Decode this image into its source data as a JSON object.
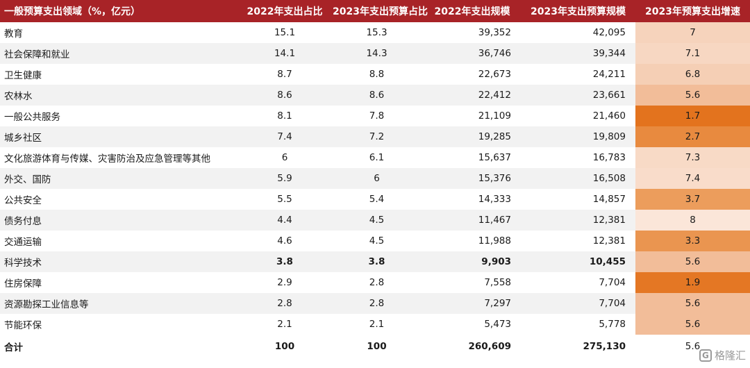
{
  "header": {
    "category": "一般预算支出领域（%，亿元）",
    "share_2022": "2022年支出占比",
    "share_2023": "2023年支出预算占比",
    "scale_2022": "2022年支出规模",
    "scale_2023": "2023年支出预算规模",
    "growth_2023": "2023年预算支出增速"
  },
  "rows": [
    {
      "label": "教育",
      "share_2022": "15.1",
      "share_2023": "15.3",
      "scale_2022": "39,352",
      "scale_2023": "42,095",
      "growth": "7",
      "growth_color": "#f6d3bc"
    },
    {
      "label": "社会保障和就业",
      "share_2022": "14.1",
      "share_2023": "14.3",
      "scale_2022": "36,746",
      "scale_2023": "39,344",
      "growth": "7.1",
      "growth_color": "#f7d7c2"
    },
    {
      "label": "卫生健康",
      "share_2022": "8.7",
      "share_2023": "8.8",
      "scale_2022": "22,673",
      "scale_2023": "24,211",
      "growth": "6.8",
      "growth_color": "#f5cfb5"
    },
    {
      "label": "农林水",
      "share_2022": "8.6",
      "share_2023": "8.6",
      "scale_2022": "22,412",
      "scale_2023": "23,661",
      "growth": "5.6",
      "growth_color": "#f2bd99"
    },
    {
      "label": "一般公共服务",
      "share_2022": "8.1",
      "share_2023": "7.8",
      "scale_2022": "21,109",
      "scale_2023": "21,460",
      "growth": "1.7",
      "growth_color": "#e3731e"
    },
    {
      "label": "城乡社区",
      "share_2022": "7.4",
      "share_2023": "7.2",
      "scale_2022": "19,285",
      "scale_2023": "19,809",
      "growth": "2.7",
      "growth_color": "#e88a3f"
    },
    {
      "label": "文化旅游体育与传媒、灾害防治及应急管理等其他",
      "share_2022": "6",
      "share_2023": "6.1",
      "scale_2022": "15,637",
      "scale_2023": "16,783",
      "growth": "7.3",
      "growth_color": "#f8dac6"
    },
    {
      "label": "外交、国防",
      "share_2022": "5.9",
      "share_2023": "6",
      "scale_2022": "15,376",
      "scale_2023": "16,508",
      "growth": "7.4",
      "growth_color": "#f9dcca"
    },
    {
      "label": "公共安全",
      "share_2022": "5.5",
      "share_2023": "5.4",
      "scale_2022": "14,333",
      "scale_2023": "14,857",
      "growth": "3.7",
      "growth_color": "#ec9d5c"
    },
    {
      "label": "债务付息",
      "share_2022": "4.4",
      "share_2023": "4.5",
      "scale_2022": "11,467",
      "scale_2023": "12,381",
      "growth": "8",
      "growth_color": "#fbe6d9"
    },
    {
      "label": "交通运输",
      "share_2022": "4.6",
      "share_2023": "4.5",
      "scale_2022": "11,988",
      "scale_2023": "12,381",
      "growth": "3.3",
      "growth_color": "#ea9550"
    },
    {
      "label": "科学技术",
      "share_2022": "3.8",
      "share_2023": "3.8",
      "scale_2022": "9,903",
      "scale_2023": "10,455",
      "growth": "5.6",
      "growth_color": "#f2bd99",
      "bold": true
    },
    {
      "label": "住房保障",
      "share_2022": "2.9",
      "share_2023": "2.8",
      "scale_2022": "7,558",
      "scale_2023": "7,704",
      "growth": "1.9",
      "growth_color": "#e47724"
    },
    {
      "label": "资源勘探工业信息等",
      "share_2022": "2.8",
      "share_2023": "2.8",
      "scale_2022": "7,297",
      "scale_2023": "7,704",
      "growth": "5.6",
      "growth_color": "#f2bd99"
    },
    {
      "label": "节能环保",
      "share_2022": "2.1",
      "share_2023": "2.1",
      "scale_2022": "5,473",
      "scale_2023": "5,778",
      "growth": "5.6",
      "growth_color": "#f2bd99"
    }
  ],
  "total": {
    "label": "合计",
    "share_2022": "100",
    "share_2023": "100",
    "scale_2022": "260,609",
    "scale_2023": "275,130",
    "growth": "5.6"
  },
  "watermark": {
    "icon_text": "G",
    "text": "格隆汇"
  },
  "colors": {
    "header_bg": "#a82327",
    "header_text": "#ffffff",
    "stripe": "#f2f2f2"
  }
}
